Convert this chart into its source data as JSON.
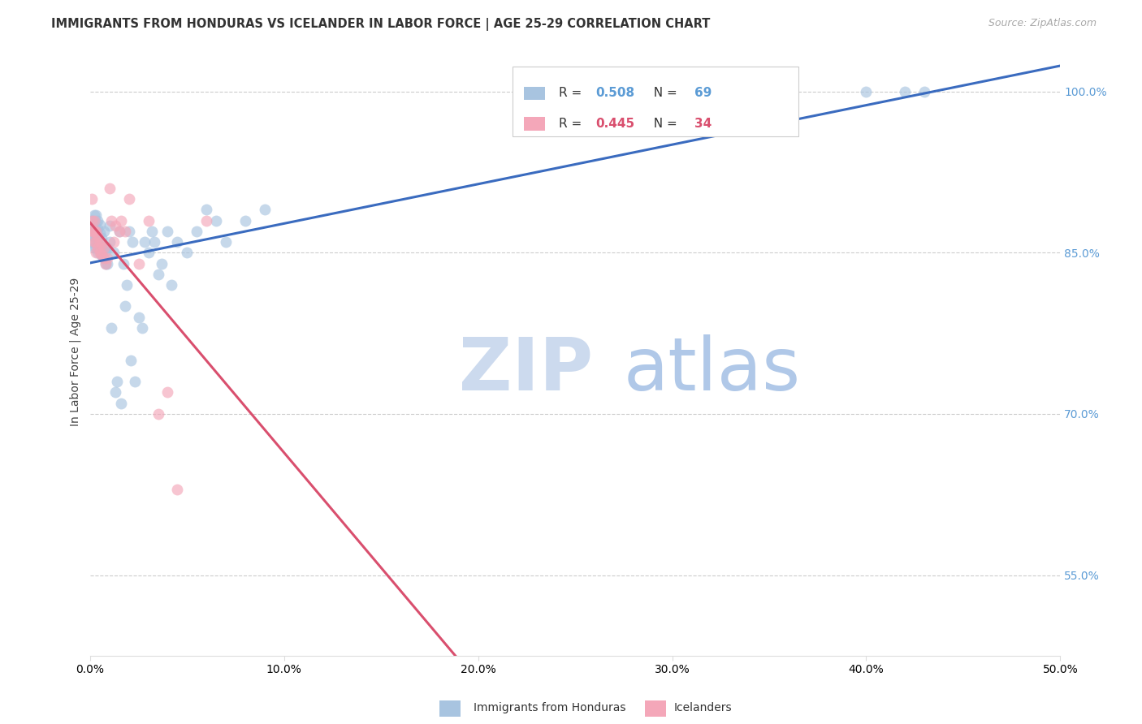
{
  "title": "IMMIGRANTS FROM HONDURAS VS ICELANDER IN LABOR FORCE | AGE 25-29 CORRELATION CHART",
  "source": "Source: ZipAtlas.com",
  "ylabel": "In Labor Force | Age 25-29",
  "yaxis_labels": [
    "100.0%",
    "85.0%",
    "70.0%",
    "55.0%"
  ],
  "yaxis_values": [
    1.0,
    0.85,
    0.7,
    0.55
  ],
  "xmin": 0.0,
  "xmax": 0.5,
  "ymin": 0.475,
  "ymax": 1.04,
  "R_honduras": 0.508,
  "N_honduras": 69,
  "R_icelander": 0.445,
  "N_icelander": 34,
  "color_honduras": "#a8c4e0",
  "color_icelander": "#f4a7b9",
  "color_trend_honduras": "#3a6bbf",
  "color_trend_icelander": "#d94f6e",
  "background_color": "#ffffff",
  "watermark_zip_color": "#ccdaee",
  "watermark_atlas_color": "#b0c8e8",
  "honduras_x": [
    0.001,
    0.001,
    0.001,
    0.002,
    0.002,
    0.002,
    0.002,
    0.002,
    0.003,
    0.003,
    0.003,
    0.003,
    0.003,
    0.003,
    0.004,
    0.004,
    0.004,
    0.004,
    0.004,
    0.005,
    0.005,
    0.005,
    0.005,
    0.006,
    0.006,
    0.006,
    0.007,
    0.007,
    0.007,
    0.008,
    0.008,
    0.009,
    0.009,
    0.01,
    0.01,
    0.011,
    0.012,
    0.013,
    0.014,
    0.015,
    0.016,
    0.017,
    0.018,
    0.019,
    0.02,
    0.021,
    0.022,
    0.023,
    0.025,
    0.027,
    0.028,
    0.03,
    0.032,
    0.033,
    0.035,
    0.037,
    0.04,
    0.042,
    0.045,
    0.05,
    0.055,
    0.06,
    0.065,
    0.07,
    0.08,
    0.09,
    0.4,
    0.42,
    0.43
  ],
  "honduras_y": [
    0.87,
    0.86,
    0.88,
    0.87,
    0.855,
    0.865,
    0.875,
    0.885,
    0.855,
    0.862,
    0.87,
    0.878,
    0.885,
    0.87,
    0.85,
    0.858,
    0.865,
    0.872,
    0.88,
    0.852,
    0.86,
    0.868,
    0.876,
    0.848,
    0.856,
    0.864,
    0.845,
    0.853,
    0.87,
    0.84,
    0.852,
    0.84,
    0.855,
    0.86,
    0.875,
    0.78,
    0.85,
    0.72,
    0.73,
    0.87,
    0.71,
    0.84,
    0.8,
    0.82,
    0.87,
    0.75,
    0.86,
    0.73,
    0.79,
    0.78,
    0.86,
    0.85,
    0.87,
    0.86,
    0.83,
    0.84,
    0.87,
    0.82,
    0.86,
    0.85,
    0.87,
    0.89,
    0.88,
    0.86,
    0.88,
    0.89,
    1.0,
    1.0,
    1.0
  ],
  "icelander_x": [
    0.001,
    0.001,
    0.001,
    0.002,
    0.002,
    0.002,
    0.002,
    0.003,
    0.003,
    0.003,
    0.004,
    0.004,
    0.005,
    0.005,
    0.006,
    0.006,
    0.007,
    0.007,
    0.008,
    0.009,
    0.01,
    0.011,
    0.012,
    0.013,
    0.015,
    0.016,
    0.018,
    0.02,
    0.025,
    0.03,
    0.035,
    0.04,
    0.045,
    0.06
  ],
  "icelander_y": [
    0.87,
    0.88,
    0.9,
    0.86,
    0.87,
    0.88,
    0.87,
    0.85,
    0.86,
    0.87,
    0.855,
    0.865,
    0.85,
    0.86,
    0.848,
    0.858,
    0.845,
    0.855,
    0.84,
    0.845,
    0.91,
    0.88,
    0.86,
    0.875,
    0.87,
    0.88,
    0.87,
    0.9,
    0.84,
    0.88,
    0.7,
    0.72,
    0.63,
    0.88
  ]
}
